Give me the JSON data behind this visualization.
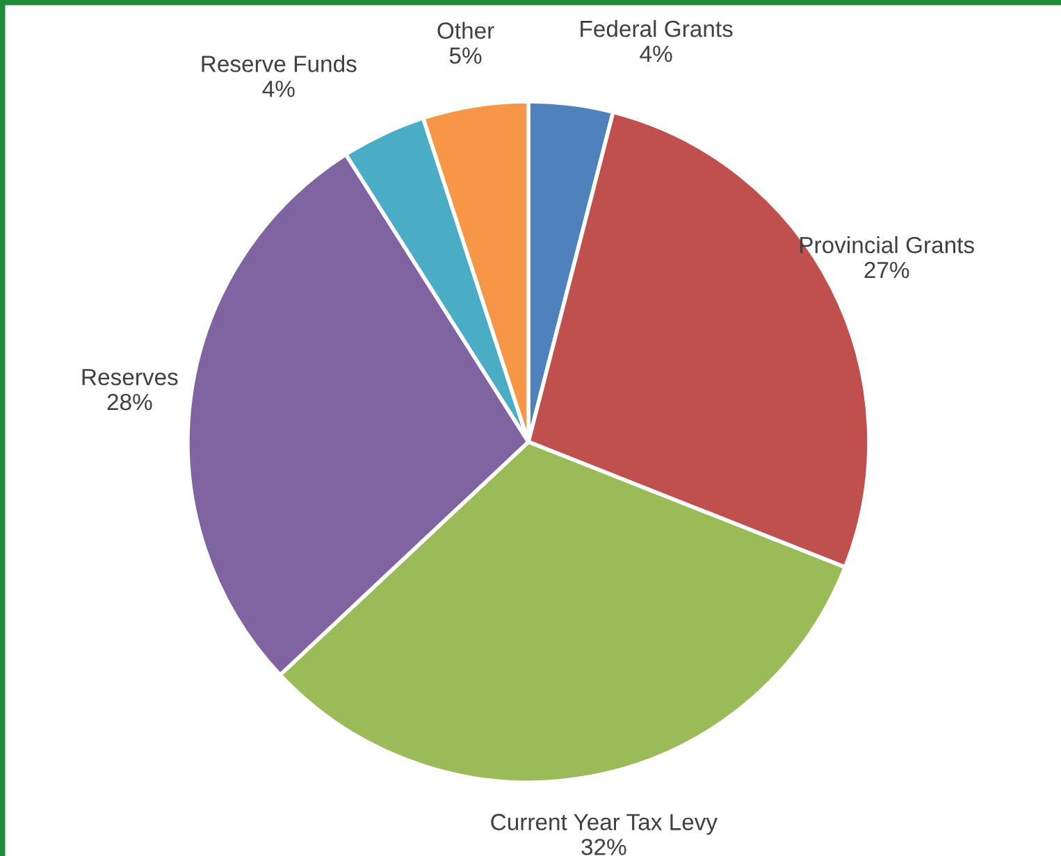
{
  "chart_data": {
    "type": "pie",
    "categories": [
      "Federal Grants",
      "Provincial Grants",
      "Current Year Tax Levy",
      "Reserves",
      "Reserve Funds",
      "Other"
    ],
    "values": [
      4,
      27,
      32,
      28,
      4,
      5
    ],
    "value_labels": [
      "4%",
      "27%",
      "32%",
      "28%",
      "4%",
      "5%"
    ],
    "colors": [
      "#4f81bd",
      "#c0504d",
      "#9bbb59",
      "#8064a2",
      "#4bacc6",
      "#f79646"
    ]
  }
}
